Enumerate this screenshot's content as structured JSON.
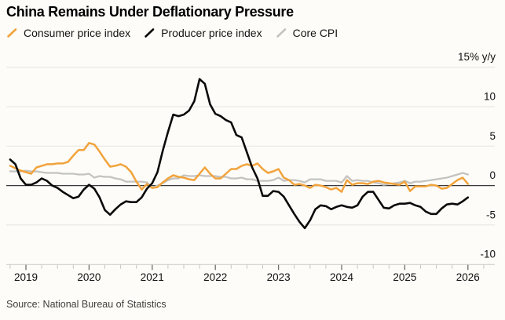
{
  "header": {
    "title": "China Remains Under Deflationary Pressure"
  },
  "legend": {
    "items": [
      {
        "label": "Consumer price index",
        "color": "#F1A33C"
      },
      {
        "label": "Producer price index",
        "color": "#0A0A0A"
      },
      {
        "label": "Core CPI",
        "color": "#C3C3C1"
      }
    ]
  },
  "footer": {
    "source": "Source: National Bureau of Statistics"
  },
  "chart_data": {
    "type": "line",
    "title": "China Remains Under Deflationary Pressure",
    "ylabel": "% y/y",
    "ylim": [
      -10,
      15
    ],
    "grid": true,
    "legend_position": "top-left",
    "freq": "monthly",
    "x_start": "2018-10",
    "x_end": "2026-01",
    "y_axis": {
      "ticks": [
        {
          "value": 15,
          "label": "15% y/y"
        },
        {
          "value": 10,
          "label": "10"
        },
        {
          "value": 5,
          "label": "5"
        },
        {
          "value": 0,
          "label": "0"
        },
        {
          "value": -5,
          "label": "-5"
        },
        {
          "value": -10,
          "label": "-10"
        }
      ]
    },
    "x_axis": {
      "year_labels": [
        "2019",
        "2020",
        "2021",
        "2022",
        "2023",
        "2024",
        "2025",
        "2026"
      ],
      "minor_ticks_per_year": 4
    },
    "series": [
      {
        "name": "Core CPI",
        "color": "#C3C3C1",
        "values": [
          1.8,
          1.8,
          1.8,
          1.9,
          1.8,
          1.8,
          1.7,
          1.6,
          1.6,
          1.6,
          1.5,
          1.5,
          1.5,
          1.4,
          1.4,
          1.5,
          1.0,
          1.2,
          1.1,
          1.1,
          0.9,
          0.8,
          0.5,
          0.5,
          0.5,
          0.5,
          0.4,
          -0.3,
          0.0,
          0.3,
          0.7,
          0.9,
          0.9,
          1.3,
          1.2,
          1.2,
          1.3,
          1.2,
          1.2,
          1.2,
          1.1,
          1.1,
          0.9,
          0.9,
          1.0,
          0.8,
          0.8,
          0.6,
          0.6,
          0.6,
          0.7,
          1.0,
          0.6,
          0.7,
          0.7,
          0.6,
          0.4,
          0.8,
          0.8,
          0.8,
          0.6,
          0.6,
          0.6,
          0.4,
          1.2,
          0.6,
          0.7,
          0.6,
          0.6,
          0.4,
          0.3,
          0.1,
          0.2,
          0.3,
          0.4,
          0.6,
          0.3,
          0.5,
          0.5,
          0.6,
          0.7,
          0.8,
          0.9,
          1.0,
          1.2,
          1.4,
          1.6,
          1.4
        ]
      },
      {
        "name": "Consumer price index",
        "color": "#F1A33C",
        "values": [
          2.5,
          2.2,
          1.9,
          1.7,
          1.5,
          2.3,
          2.5,
          2.7,
          2.7,
          2.8,
          2.8,
          3.0,
          3.8,
          4.5,
          4.5,
          5.4,
          5.2,
          4.3,
          3.3,
          2.4,
          2.5,
          2.7,
          2.4,
          1.7,
          0.5,
          -0.5,
          0.2,
          -0.3,
          -0.2,
          0.4,
          0.9,
          1.3,
          1.1,
          1.0,
          0.8,
          0.7,
          1.5,
          2.3,
          1.5,
          0.9,
          0.9,
          1.5,
          2.1,
          2.1,
          2.5,
          2.7,
          2.5,
          2.8,
          2.1,
          1.6,
          1.8,
          2.1,
          1.0,
          0.7,
          0.1,
          0.2,
          0.0,
          -0.3,
          0.1,
          0.0,
          -0.2,
          -0.5,
          -0.3,
          -0.8,
          0.7,
          0.1,
          0.3,
          0.3,
          0.2,
          0.5,
          0.6,
          0.4,
          0.3,
          0.2,
          0.1,
          0.5,
          -0.7,
          -0.1,
          -0.1,
          -0.1,
          0.1,
          0.0,
          -0.4,
          -0.3,
          0.2,
          0.7,
          1.0,
          0.2
        ]
      },
      {
        "name": "Producer price index",
        "color": "#0A0A0A",
        "values": [
          3.3,
          2.7,
          0.9,
          0.1,
          0.1,
          0.4,
          0.9,
          0.6,
          0.0,
          -0.3,
          -0.8,
          -1.2,
          -1.6,
          -1.4,
          -0.5,
          0.1,
          -0.4,
          -1.5,
          -3.1,
          -3.7,
          -3.0,
          -2.4,
          -2.0,
          -2.1,
          -2.1,
          -1.5,
          -0.4,
          0.3,
          1.7,
          4.4,
          6.8,
          9.0,
          8.8,
          9.0,
          9.5,
          10.7,
          13.5,
          12.9,
          10.3,
          9.1,
          8.8,
          8.3,
          8.0,
          6.4,
          6.1,
          4.2,
          2.3,
          0.9,
          -1.3,
          -1.3,
          -0.7,
          -0.8,
          -1.4,
          -2.5,
          -3.6,
          -4.6,
          -5.4,
          -4.4,
          -3.0,
          -2.5,
          -2.6,
          -3.0,
          -2.7,
          -2.5,
          -2.7,
          -2.8,
          -2.5,
          -1.4,
          -0.8,
          -0.8,
          -1.8,
          -2.8,
          -2.9,
          -2.5,
          -2.3,
          -2.3,
          -2.2,
          -2.5,
          -2.7,
          -3.3,
          -3.6,
          -3.6,
          -2.9,
          -2.4,
          -2.3,
          -2.4,
          -2.0,
          -1.5
        ]
      }
    ]
  }
}
